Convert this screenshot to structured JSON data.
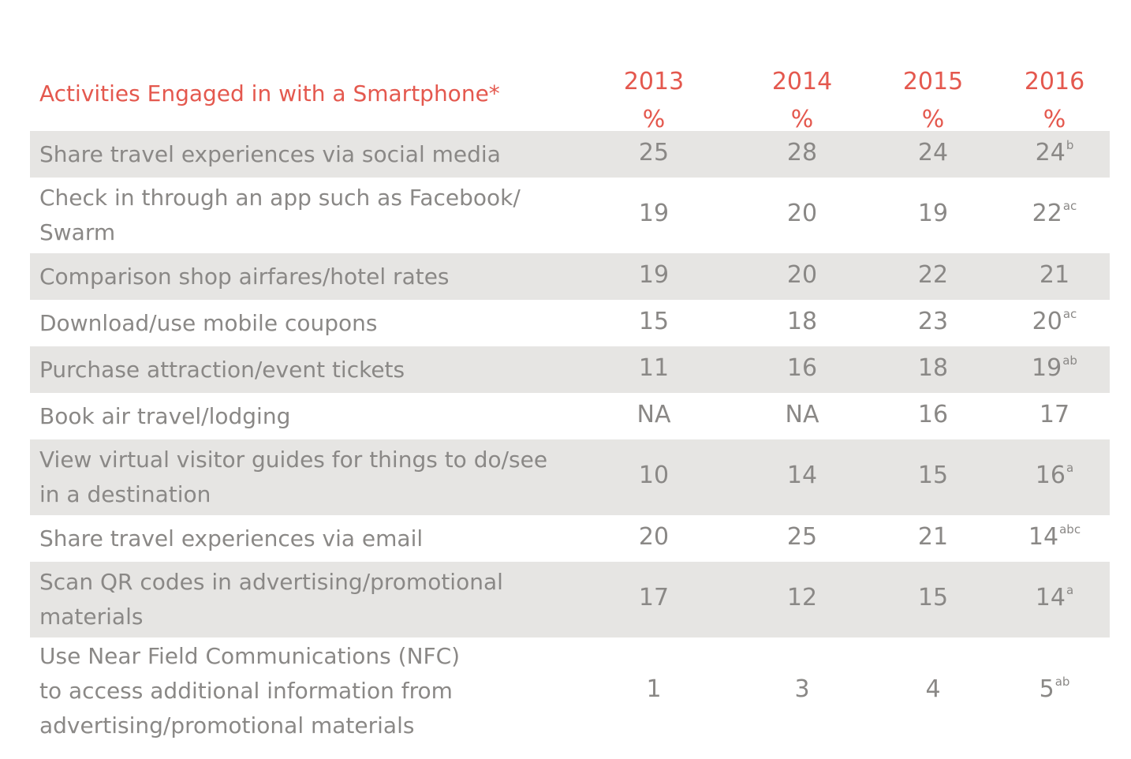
{
  "chart_data": {
    "type": "table",
    "title": "Activities Engaged in with a Smartphone*",
    "columns": [
      {
        "year": "2013",
        "unit": "%"
      },
      {
        "year": "2014",
        "unit": "%"
      },
      {
        "year": "2015",
        "unit": "%"
      },
      {
        "year": "2016",
        "unit": "%"
      }
    ],
    "rows": [
      {
        "label_lines": [
          "Share travel experiences via social media"
        ],
        "values": [
          "25",
          "28",
          "24",
          "24"
        ],
        "notes": [
          "",
          "",
          "",
          "b"
        ]
      },
      {
        "label_lines": [
          "Check in through an app such as Facebook/",
          "Swarm"
        ],
        "values": [
          "19",
          "20",
          "19",
          "22"
        ],
        "notes": [
          "",
          "",
          "",
          "ac"
        ]
      },
      {
        "label_lines": [
          "Comparison shop airfares/hotel rates"
        ],
        "values": [
          "19",
          "20",
          "22",
          "21"
        ],
        "notes": [
          "",
          "",
          "",
          ""
        ]
      },
      {
        "label_lines": [
          "Download/use mobile coupons"
        ],
        "values": [
          "15",
          "18",
          "23",
          "20"
        ],
        "notes": [
          "",
          "",
          "",
          "ac"
        ]
      },
      {
        "label_lines": [
          "Purchase attraction/event tickets"
        ],
        "values": [
          "11",
          "16",
          "18",
          "19"
        ],
        "notes": [
          "",
          "",
          "",
          "ab"
        ]
      },
      {
        "label_lines": [
          "Book air travel/lodging"
        ],
        "values": [
          "NA",
          "NA",
          "16",
          "17"
        ],
        "notes": [
          "",
          "",
          "",
          ""
        ]
      },
      {
        "label_lines": [
          "View virtual visitor guides for things to do/see",
          "in a destination"
        ],
        "values": [
          "10",
          "14",
          "15",
          "16"
        ],
        "notes": [
          "",
          "",
          "",
          "a"
        ]
      },
      {
        "label_lines": [
          "Share travel experiences via email"
        ],
        "values": [
          "20",
          "25",
          "21",
          "14"
        ],
        "notes": [
          "",
          "",
          "",
          "abc"
        ]
      },
      {
        "label_lines": [
          "Scan QR codes in advertising/promotional",
          "materials"
        ],
        "values": [
          "17",
          "12",
          "15",
          "14"
        ],
        "notes": [
          "",
          "",
          "",
          "a"
        ]
      },
      {
        "label_lines": [
          "Use Near Field Communications (NFC)",
          "to access additional information from",
          "advertising/promotional materials"
        ],
        "values": [
          "1",
          "3",
          "4",
          "5"
        ],
        "notes": [
          "",
          "",
          "",
          "ab"
        ]
      }
    ]
  },
  "colors": {
    "accent": "#e4584e",
    "text": "#8a8886",
    "shade": "#e6e5e3"
  }
}
